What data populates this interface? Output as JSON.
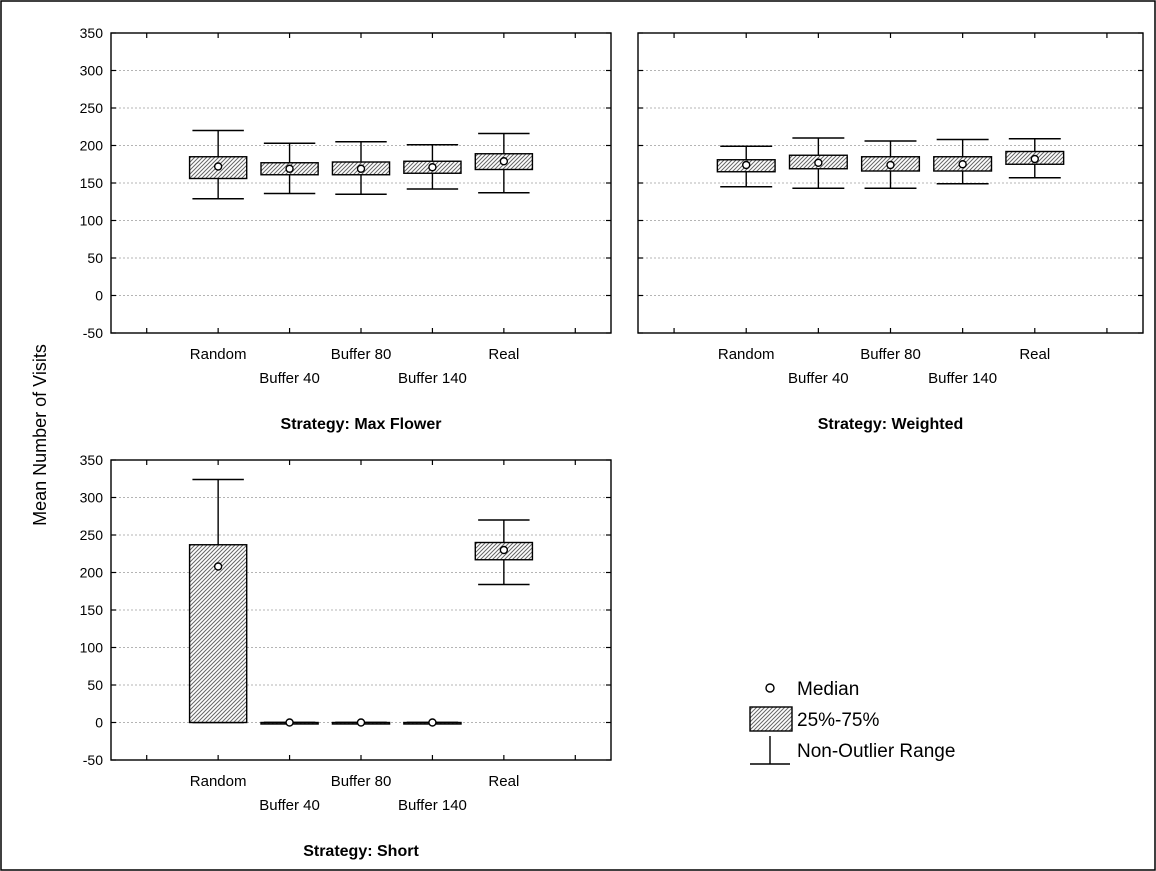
{
  "ylabel": "Mean Number of Visits",
  "chart_data": [
    {
      "type": "boxplot",
      "title": "Strategy: Max Flower",
      "ylim": [
        -50,
        350
      ],
      "yticks": [
        -50,
        0,
        50,
        100,
        150,
        200,
        250,
        300,
        350
      ],
      "grid": true,
      "categories": [
        "Random",
        "Buffer 40",
        "Buffer 80",
        "Buffer 140",
        "Real"
      ],
      "boxes": [
        {
          "median": 172,
          "q1": 156,
          "q3": 185,
          "whisker_low": 129,
          "whisker_high": 220
        },
        {
          "median": 169,
          "q1": 161,
          "q3": 177,
          "whisker_low": 136,
          "whisker_high": 203
        },
        {
          "median": 169,
          "q1": 161,
          "q3": 178,
          "whisker_low": 135,
          "whisker_high": 205
        },
        {
          "median": 171,
          "q1": 163,
          "q3": 179,
          "whisker_low": 142,
          "whisker_high": 201
        },
        {
          "median": 179,
          "q1": 168,
          "q3": 189,
          "whisker_low": 137,
          "whisker_high": 216
        }
      ]
    },
    {
      "type": "boxplot",
      "title": "Strategy: Weighted",
      "ylim": [
        -50,
        350
      ],
      "yticks": [
        -50,
        0,
        50,
        100,
        150,
        200,
        250,
        300,
        350
      ],
      "grid": true,
      "categories": [
        "Random",
        "Buffer 40",
        "Buffer 80",
        "Buffer 140",
        "Real"
      ],
      "boxes": [
        {
          "median": 174,
          "q1": 165,
          "q3": 181,
          "whisker_low": 145,
          "whisker_high": 199
        },
        {
          "median": 177,
          "q1": 169,
          "q3": 187,
          "whisker_low": 143,
          "whisker_high": 210
        },
        {
          "median": 174,
          "q1": 166,
          "q3": 185,
          "whisker_low": 143,
          "whisker_high": 206
        },
        {
          "median": 175,
          "q1": 166,
          "q3": 185,
          "whisker_low": 149,
          "whisker_high": 208
        },
        {
          "median": 182,
          "q1": 175,
          "q3": 192,
          "whisker_low": 157,
          "whisker_high": 209
        }
      ]
    },
    {
      "type": "boxplot",
      "title": "Strategy: Short",
      "ylim": [
        -50,
        350
      ],
      "yticks": [
        -50,
        0,
        50,
        100,
        150,
        200,
        250,
        300,
        350
      ],
      "grid": true,
      "categories": [
        "Random",
        "Buffer 40",
        "Buffer 80",
        "Buffer 140",
        "Real"
      ],
      "boxes": [
        {
          "median": 208,
          "q1": 0,
          "q3": 237,
          "whisker_low": 0,
          "whisker_high": 324
        },
        {
          "median": 0,
          "q1": 0,
          "q3": 0,
          "whisker_low": 0,
          "whisker_high": 0
        },
        {
          "median": 0,
          "q1": 0,
          "q3": 0,
          "whisker_low": 0,
          "whisker_high": 0
        },
        {
          "median": 0,
          "q1": 0,
          "q3": 0,
          "whisker_low": 0,
          "whisker_high": 0
        },
        {
          "median": 230,
          "q1": 217,
          "q3": 240,
          "whisker_low": 184,
          "whisker_high": 270
        }
      ]
    }
  ],
  "legend": {
    "items": [
      {
        "symbol": "median",
        "label": "Median"
      },
      {
        "symbol": "box",
        "label": "25%-75%"
      },
      {
        "symbol": "whisker",
        "label": "Non-Outlier Range"
      }
    ]
  },
  "colors": {
    "hatch": "#666666",
    "grid": "#b4b4b4"
  }
}
